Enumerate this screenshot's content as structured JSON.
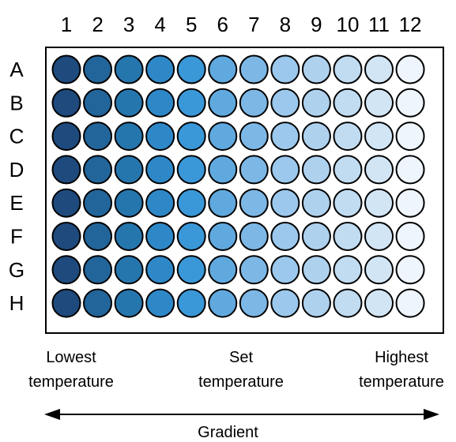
{
  "plate": {
    "columns": [
      "1",
      "2",
      "3",
      "4",
      "5",
      "6",
      "7",
      "8",
      "9",
      "10",
      "11",
      "12"
    ],
    "rows": [
      "A",
      "B",
      "C",
      "D",
      "E",
      "F",
      "G",
      "H"
    ],
    "column_colors": [
      "#1e4a7d",
      "#22659a",
      "#2676ae",
      "#2e88c8",
      "#3a98d8",
      "#60a9df",
      "#7db7e5",
      "#9bc8ec",
      "#aed1ee",
      "#c1dcf1",
      "#d2e5f5",
      "#eef5fc"
    ],
    "well_stroke": "#000000",
    "frame_stroke": "#000000"
  },
  "captions": {
    "lowest_line1": "Lowest",
    "lowest_line2": "temperature",
    "set_line1": "Set",
    "set_line2": "temperature",
    "highest_line1": "Highest",
    "highest_line2": "temperature"
  },
  "gradient": {
    "label": "Gradient"
  }
}
